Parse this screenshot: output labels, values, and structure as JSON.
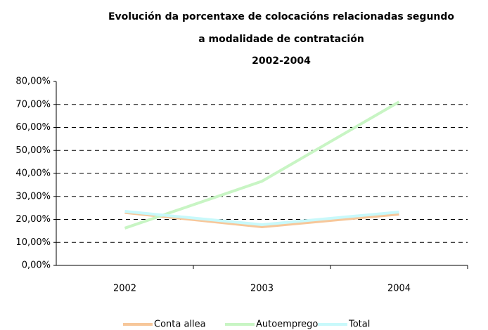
{
  "chart_data": {
    "type": "line",
    "title": [
      "Evolución da porcentaxe de colocacións relacionadas segundo",
      "a modalidade de contratación",
      "2002-2004"
    ],
    "categories": [
      "2002",
      "2003",
      "2004"
    ],
    "series": [
      {
        "name": "Conta allea",
        "color": "#f7c79a",
        "values": [
          23.0,
          16.8,
          22.3
        ]
      },
      {
        "name": "Autoemprego",
        "color": "#c8f5c4",
        "values": [
          16.2,
          36.6,
          71.1
        ]
      },
      {
        "name": "Total",
        "color": "#c8f9fb",
        "values": [
          23.5,
          17.7,
          23.2
        ]
      }
    ],
    "ylim": [
      0,
      80
    ],
    "yticks": [
      {
        "value": 0,
        "label": "0,00%"
      },
      {
        "value": 10,
        "label": "10,00%"
      },
      {
        "value": 20,
        "label": "20,00%"
      },
      {
        "value": 30,
        "label": "30,00%"
      },
      {
        "value": 40,
        "label": "40,00%"
      },
      {
        "value": 50,
        "label": "50,00%"
      },
      {
        "value": 60,
        "label": "60,00%"
      },
      {
        "value": 70,
        "label": "70,00%"
      },
      {
        "value": 80,
        "label": "80,00%"
      }
    ],
    "grid": true
  }
}
